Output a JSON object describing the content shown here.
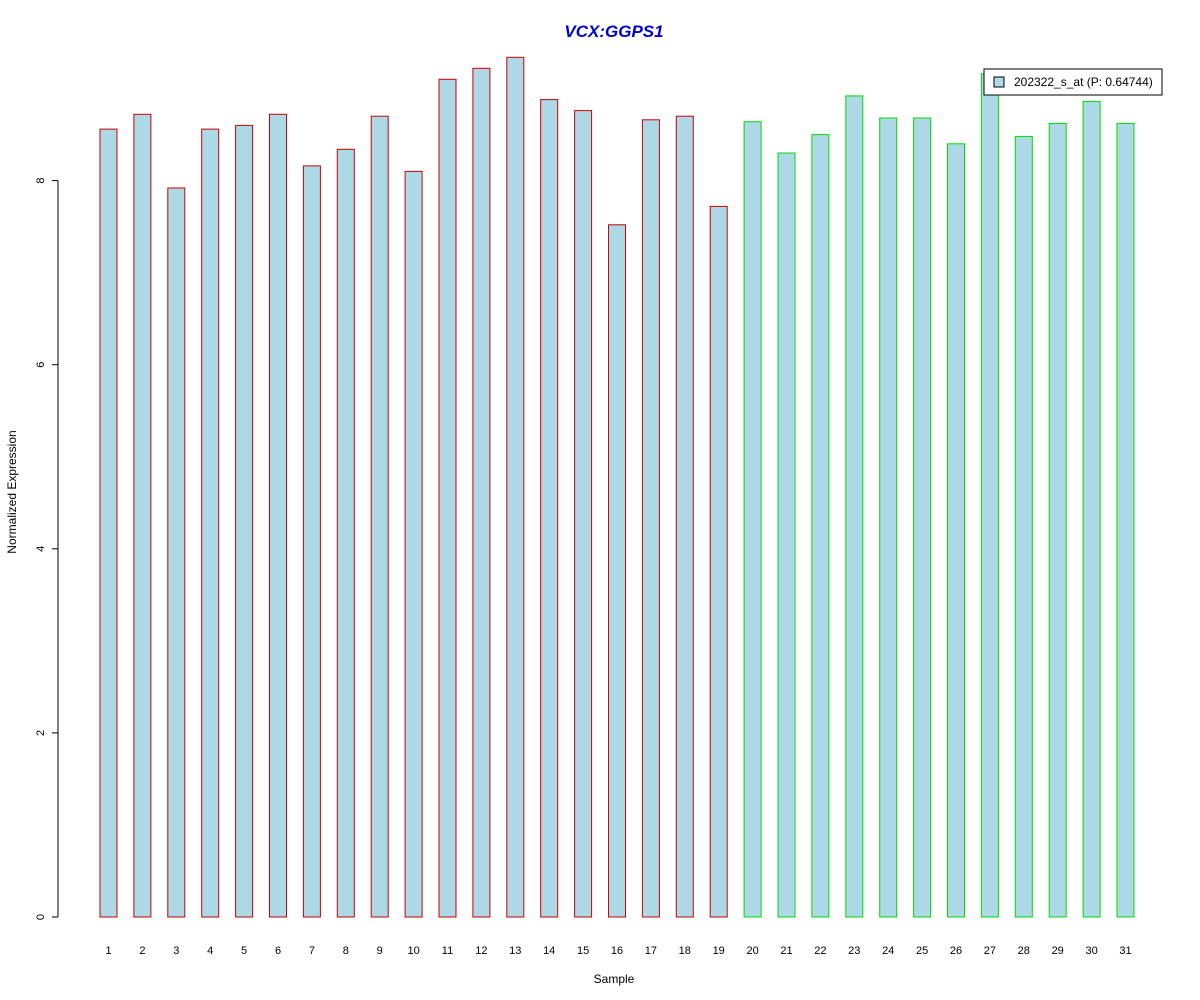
{
  "chart_data": {
    "type": "bar",
    "title": "VCX:GGPS1",
    "title_color": "#0000cc",
    "xlabel": "Sample",
    "ylabel": "Normalized Expression",
    "ylim": [
      0,
      9.4
    ],
    "yticks": [
      0,
      2,
      4,
      6,
      8
    ],
    "grid": false,
    "legend": {
      "placement": "top-right",
      "label": "202322_s_at (P: 0.64744)",
      "swatch_color": "#add8e6"
    },
    "bar_fill": "#add8e6",
    "group_colors": {
      "group1": "#cc0000",
      "group2": "#00dd00"
    },
    "categories": [
      "1",
      "2",
      "3",
      "4",
      "5",
      "6",
      "7",
      "8",
      "9",
      "10",
      "11",
      "12",
      "13",
      "14",
      "15",
      "16",
      "17",
      "18",
      "19",
      "20",
      "21",
      "22",
      "23",
      "24",
      "25",
      "26",
      "27",
      "28",
      "29",
      "30",
      "31"
    ],
    "values": [
      8.56,
      8.72,
      7.92,
      8.56,
      8.6,
      8.72,
      8.16,
      8.34,
      8.7,
      8.1,
      9.1,
      9.22,
      9.34,
      8.88,
      8.76,
      7.52,
      8.66,
      8.7,
      7.72,
      8.64,
      8.3,
      8.5,
      8.92,
      8.68,
      8.68,
      8.4,
      9.16,
      8.48,
      8.62,
      8.86,
      8.62
    ],
    "groups": [
      1,
      1,
      1,
      1,
      1,
      1,
      1,
      1,
      1,
      1,
      1,
      1,
      1,
      1,
      1,
      1,
      1,
      1,
      1,
      2,
      2,
      2,
      2,
      2,
      2,
      2,
      2,
      2,
      2,
      2,
      2
    ]
  }
}
